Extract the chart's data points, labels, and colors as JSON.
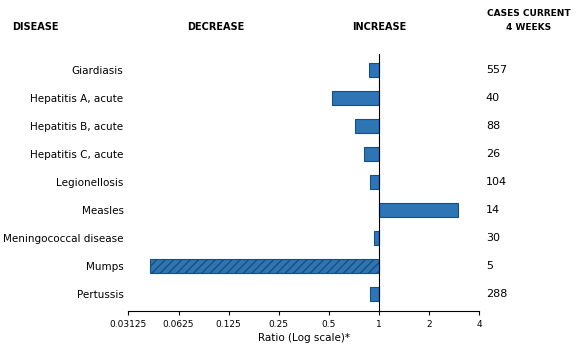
{
  "diseases": [
    "Giardiasis",
    "Hepatitis A, acute",
    "Hepatitis B, acute",
    "Hepatitis C, acute",
    "Legionellosis",
    "Measles",
    "Meningococcal disease",
    "Mumps",
    "Pertussis"
  ],
  "ratios": [
    0.87,
    0.52,
    0.72,
    0.82,
    0.88,
    3.0,
    0.93,
    0.042,
    0.88
  ],
  "cases": [
    557,
    40,
    88,
    26,
    104,
    14,
    30,
    5,
    288
  ],
  "beyond_limits": [
    false,
    false,
    false,
    false,
    false,
    false,
    false,
    true,
    false
  ],
  "bar_color": "#2E75B6",
  "bar_edgecolor": "#1a4f7a",
  "xmin": 0.03125,
  "xmax": 4.0,
  "xticks": [
    0.03125,
    0.0625,
    0.125,
    0.25,
    0.5,
    1,
    2,
    4
  ],
  "xtick_labels": [
    "0.03125",
    "0.0625",
    "0.125",
    "0.25",
    "0.5",
    "1",
    "2",
    "4"
  ],
  "xlabel": "Ratio (Log scale)*",
  "title_disease": "DISEASE",
  "title_decrease": "DECREASE",
  "title_increase": "INCREASE",
  "title_cases_line1": "CASES CURRENT",
  "title_cases_line2": "4 WEEKS",
  "background_color": "#ffffff",
  "text_color": "#000000",
  "bar_height": 0.5
}
